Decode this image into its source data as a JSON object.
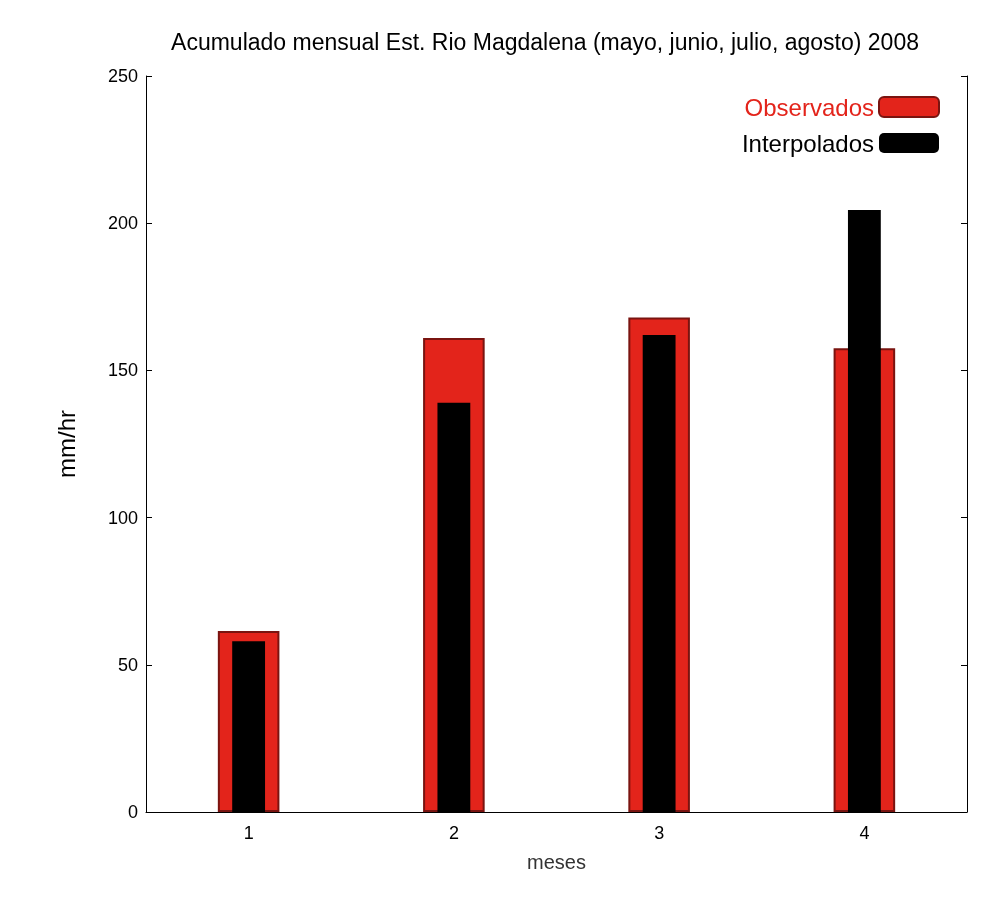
{
  "chart_data": {
    "type": "bar",
    "title": "Acumulado mensual Est. Rio Magdalena (mayo, junio, julio, agosto) 2008",
    "xlabel": "meses",
    "ylabel": "mm/hr",
    "categories": [
      "1",
      "2",
      "3",
      "4"
    ],
    "series": [
      {
        "name": "Observados",
        "color": "#e3241b",
        "values": [
          61.5,
          161,
          168,
          157.5
        ]
      },
      {
        "name": "Interpolados",
        "color": "#000000",
        "values": [
          58,
          139,
          162,
          204.5
        ]
      }
    ],
    "ylim": [
      0,
      250
    ],
    "yticks": [
      0,
      50,
      100,
      150,
      200,
      250
    ],
    "grid": false,
    "legend": "top right"
  }
}
